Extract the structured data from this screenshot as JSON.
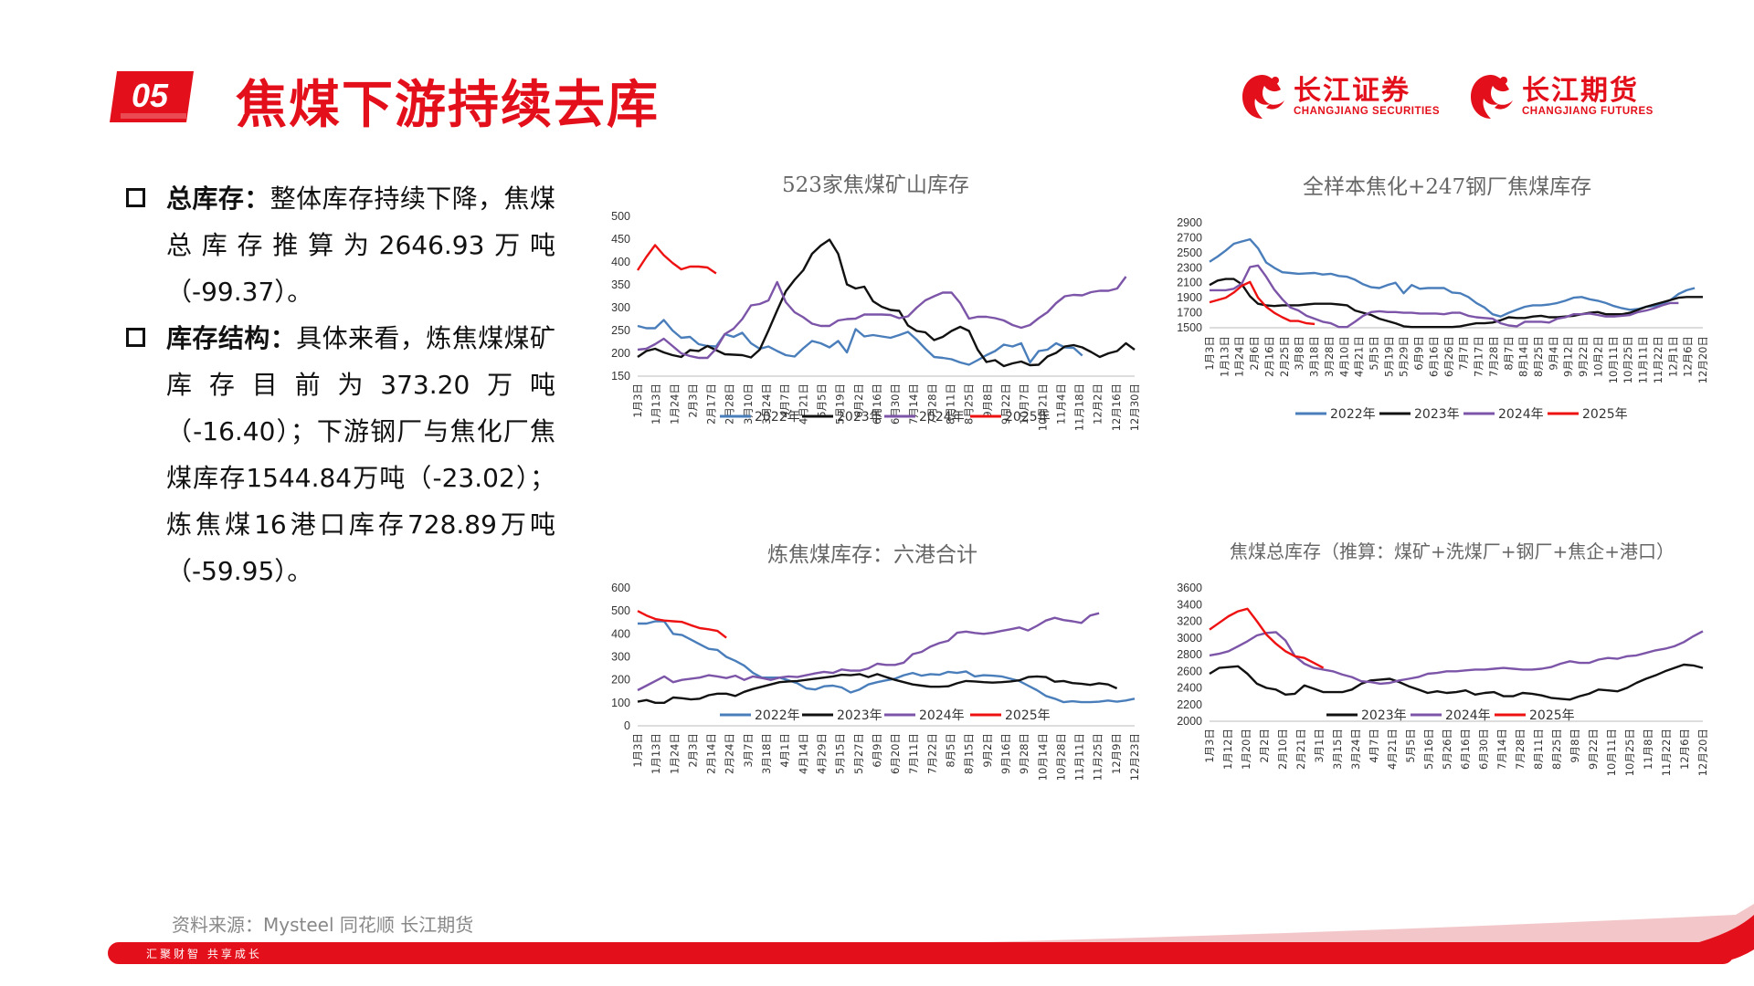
{
  "header": {
    "section_number": "05",
    "title": "焦煤下游持续去库",
    "logos": [
      {
        "cn": "长江证券",
        "en": "CHANGJIANG SECURITIES"
      },
      {
        "cn": "长江期货",
        "en": "CHANGJIANG FUTURES"
      }
    ]
  },
  "bullets": [
    {
      "label": "总库存：",
      "text": "整体库存持续下降，焦煤总库存推算为2646.93万吨（-99.37）。"
    },
    {
      "label": "库存结构：",
      "text": "具体来看，炼焦煤煤矿库存目前为373.20万吨（-16.40）；下游钢厂与焦化厂焦煤库存1544.84万吨（-23.02）；炼焦煤16港口库存728.89万吨（-59.95）。"
    }
  ],
  "source": "资料来源：Mysteel  同花顺   长江期货",
  "footer_slogan": "汇聚财智      共享成长",
  "colors": {
    "brand_red": "#e30f1a",
    "y2022": "#4a7ebb",
    "y2023": "#111111",
    "y2024": "#7c55a8",
    "y2025": "#ee1111"
  },
  "chart_data": [
    {
      "type": "line",
      "title": "523家焦煤矿山库存",
      "ylim": [
        150,
        500
      ],
      "yticks": [
        150,
        200,
        250,
        300,
        350,
        400,
        450,
        500
      ],
      "x_ticks": [
        "1月3日",
        "1月13日",
        "1月24日",
        "2月3日",
        "2月17日",
        "2月28日",
        "3月10日",
        "3月24日",
        "4月7日",
        "4月21日",
        "5月5日",
        "5月19日",
        "6月2日",
        "6月16日",
        "6月30日",
        "7月14日",
        "7月28日",
        "8月11日",
        "8月25日",
        "9月8日",
        "9月22日",
        "10月7日",
        "10月21日",
        "11月4日",
        "11月18日",
        "12月2日",
        "12月16日",
        "12月30日"
      ],
      "series": [
        {
          "name": "2022年",
          "color": "#4a7ebb",
          "values": [
            260,
            255,
            255,
            273,
            250,
            234,
            236,
            220,
            216,
            215,
            242,
            236,
            245,
            222,
            210,
            215,
            205,
            196,
            193,
            211,
            227,
            222,
            213,
            227,
            202,
            253,
            237,
            240,
            237,
            234,
            240,
            247,
            230,
            210,
            192,
            190,
            187,
            180,
            175,
            185,
            196,
            205,
            219,
            215,
            222,
            180,
            205,
            208,
            222,
            213,
            212,
            195
          ]
        },
        {
          "name": "2023年",
          "color": "#111111",
          "values": [
            192,
            205,
            210,
            202,
            196,
            192,
            207,
            205,
            216,
            207,
            198,
            197,
            196,
            191,
            208,
            250,
            294,
            336,
            361,
            382,
            418,
            436,
            449,
            418,
            351,
            342,
            346,
            314,
            302,
            295,
            293,
            261,
            249,
            246,
            229,
            236,
            249,
            258,
            249,
            208,
            181,
            185,
            172,
            178,
            182,
            174,
            175,
            193,
            201,
            215,
            218,
            213,
            203,
            192,
            200,
            205,
            222,
            208
          ]
        },
        {
          "name": "2024年",
          "color": "#7c55a8",
          "values": [
            208,
            210,
            220,
            232,
            216,
            200,
            194,
            190,
            190,
            210,
            242,
            254,
            275,
            305,
            308,
            316,
            356,
            312,
            290,
            279,
            265,
            260,
            260,
            272,
            275,
            276,
            285,
            285,
            285,
            284,
            277,
            281,
            300,
            316,
            325,
            333,
            333,
            310,
            276,
            280,
            280,
            277,
            272,
            262,
            256,
            262,
            277,
            290,
            310,
            325,
            328,
            327,
            334,
            337,
            337,
            342,
            368
          ]
        },
        {
          "name": "2025年",
          "color": "#ee1111",
          "values": [
            382,
            411,
            437,
            415,
            398,
            384,
            390,
            390,
            388,
            375
          ]
        }
      ]
    },
    {
      "type": "line",
      "title": "全样本焦化+247钢厂焦煤库存",
      "ylim": [
        1500,
        2900
      ],
      "yticks": [
        1500,
        1700,
        1900,
        2100,
        2300,
        2500,
        2700,
        2900
      ],
      "x_ticks": [
        "1月3日",
        "1月13日",
        "1月24日",
        "2月6日",
        "2月16日",
        "2月25日",
        "3月8日",
        "3月18日",
        "3月28日",
        "4月10日",
        "4月21日",
        "5月5日",
        "5月19日",
        "5月29日",
        "6月9日",
        "6月16日",
        "6月26日",
        "7月7日",
        "7月17日",
        "7月28日",
        "8月7日",
        "8月14日",
        "8月25日",
        "9月4日",
        "9月12日",
        "9月22日",
        "10月2日",
        "10月11日",
        "10月25日",
        "11月11日",
        "11月22日",
        "12月1日",
        "12月6日",
        "12月20日"
      ],
      "series": [
        {
          "name": "2022年",
          "color": "#4a7ebb",
          "values": [
            2380,
            2450,
            2530,
            2620,
            2650,
            2680,
            2560,
            2370,
            2300,
            2240,
            2230,
            2220,
            2225,
            2230,
            2210,
            2220,
            2190,
            2180,
            2140,
            2080,
            2040,
            2030,
            2070,
            2100,
            1960,
            2070,
            2020,
            2030,
            2030,
            2030,
            1970,
            1960,
            1910,
            1830,
            1770,
            1680,
            1650,
            1700,
            1740,
            1780,
            1800,
            1800,
            1810,
            1830,
            1860,
            1900,
            1910,
            1880,
            1860,
            1830,
            1790,
            1760,
            1740,
            1750,
            1780,
            1790,
            1820,
            1870,
            1950,
            2000,
            2030
          ]
        },
        {
          "name": "2023年",
          "color": "#111111",
          "values": [
            2070,
            2130,
            2150,
            2150,
            2080,
            1920,
            1820,
            1800,
            1790,
            1800,
            1800,
            1800,
            1810,
            1820,
            1820,
            1820,
            1810,
            1800,
            1730,
            1700,
            1670,
            1620,
            1590,
            1560,
            1520,
            1510,
            1510,
            1510,
            1510,
            1510,
            1510,
            1520,
            1540,
            1560,
            1560,
            1570,
            1600,
            1640,
            1630,
            1630,
            1650,
            1660,
            1640,
            1640,
            1650,
            1660,
            1680,
            1700,
            1710,
            1680,
            1680,
            1680,
            1700,
            1740,
            1780,
            1810,
            1840,
            1870,
            1900,
            1910,
            1910,
            1910
          ]
        },
        {
          "name": "2024年",
          "color": "#7c55a8",
          "values": [
            2000,
            2000,
            2000,
            2020,
            2090,
            2310,
            2330,
            2180,
            2010,
            1880,
            1770,
            1730,
            1660,
            1620,
            1580,
            1560,
            1510,
            1510,
            1580,
            1660,
            1710,
            1720,
            1710,
            1710,
            1700,
            1700,
            1690,
            1690,
            1690,
            1680,
            1700,
            1700,
            1660,
            1640,
            1630,
            1620,
            1560,
            1530,
            1520,
            1580,
            1580,
            1580,
            1570,
            1620,
            1640,
            1680,
            1680,
            1690,
            1670,
            1650,
            1650,
            1660,
            1670,
            1710,
            1730,
            1760,
            1800,
            1830,
            1830
          ]
        },
        {
          "name": "2025年",
          "color": "#ee1111",
          "values": [
            1840,
            1870,
            1900,
            1970,
            2060,
            2110,
            1900,
            1780,
            1700,
            1640,
            1590,
            1590,
            1560,
            1550
          ]
        }
      ]
    },
    {
      "type": "line",
      "title": "炼焦煤库存：六港合计",
      "ylim": [
        0,
        600
      ],
      "yticks": [
        0,
        100,
        200,
        300,
        400,
        500,
        600
      ],
      "x_ticks": [
        "1月3日",
        "1月13日",
        "1月24日",
        "2月3日",
        "2月14日",
        "2月24日",
        "3月7日",
        "3月18日",
        "4月1日",
        "4月14日",
        "4月29日",
        "5月15日",
        "5月27日",
        "6月9日",
        "6月20日",
        "7月11日",
        "7月22日",
        "8月5日",
        "8月15日",
        "9月2日",
        "9月16日",
        "9月28日",
        "10月14日",
        "10月28日",
        "11月11日",
        "11月25日",
        "12月9日",
        "12月23日"
      ],
      "series": [
        {
          "name": "2022年",
          "color": "#4a7ebb",
          "values": [
            445,
            445,
            455,
            455,
            400,
            395,
            375,
            355,
            335,
            330,
            300,
            283,
            262,
            230,
            210,
            210,
            210,
            198,
            185,
            163,
            158,
            172,
            175,
            167,
            145,
            158,
            180,
            190,
            198,
            205,
            220,
            230,
            218,
            225,
            222,
            235,
            230,
            237,
            215,
            220,
            218,
            215,
            205,
            195,
            175,
            155,
            130,
            118,
            103,
            107,
            103,
            103,
            105,
            110,
            105,
            110,
            118
          ]
        },
        {
          "name": "2023年",
          "color": "#111111",
          "values": [
            105,
            112,
            100,
            100,
            123,
            120,
            115,
            118,
            133,
            140,
            140,
            130,
            148,
            160,
            170,
            180,
            190,
            193,
            195,
            200,
            205,
            210,
            215,
            222,
            220,
            225,
            212,
            225,
            212,
            200,
            190,
            180,
            175,
            170,
            170,
            172,
            185,
            195,
            193,
            190,
            188,
            190,
            193,
            198,
            212,
            215,
            212,
            192,
            195,
            186,
            183,
            178,
            185,
            180,
            163
          ]
        },
        {
          "name": "2024年",
          "color": "#7c55a8",
          "values": [
            155,
            175,
            195,
            215,
            190,
            200,
            205,
            210,
            220,
            215,
            208,
            218,
            200,
            215,
            208,
            200,
            210,
            215,
            212,
            220,
            228,
            235,
            230,
            245,
            240,
            240,
            250,
            270,
            265,
            265,
            275,
            312,
            322,
            345,
            360,
            370,
            405,
            410,
            404,
            400,
            405,
            413,
            420,
            428,
            415,
            435,
            458,
            470,
            460,
            455,
            448,
            480,
            490
          ]
        },
        {
          "name": "2025年",
          "color": "#ee1111",
          "values": [
            500,
            480,
            465,
            458,
            455,
            452,
            438,
            425,
            420,
            413,
            383
          ]
        }
      ]
    },
    {
      "type": "line",
      "title": "焦煤总库存（推算：煤矿+洗煤厂+钢厂+焦企+港口）",
      "ylim": [
        2000,
        3600
      ],
      "yticks": [
        2000,
        2200,
        2400,
        2600,
        2800,
        3000,
        3200,
        3400,
        3600
      ],
      "x_ticks": [
        "1月3日",
        "1月12日",
        "1月20日",
        "2月2日",
        "2月10日",
        "2月21日",
        "3月1日",
        "3月15日",
        "3月24日",
        "4月7日",
        "4月21日",
        "5月5日",
        "5月16日",
        "5月26日",
        "6月16日",
        "6月30日",
        "7月14日",
        "7月28日",
        "8月11日",
        "8月25日",
        "9月8日",
        "9月22日",
        "10月11日",
        "10月25日",
        "11月8日",
        "11月22日",
        "12月6日",
        "12月20日"
      ],
      "series": [
        {
          "name": "2023年",
          "color": "#111111",
          "values": [
            2570,
            2640,
            2650,
            2660,
            2570,
            2450,
            2400,
            2380,
            2320,
            2330,
            2430,
            2390,
            2350,
            2350,
            2350,
            2380,
            2450,
            2490,
            2500,
            2510,
            2470,
            2420,
            2380,
            2340,
            2360,
            2340,
            2350,
            2370,
            2320,
            2340,
            2350,
            2300,
            2300,
            2340,
            2330,
            2310,
            2280,
            2270,
            2260,
            2300,
            2330,
            2380,
            2370,
            2360,
            2400,
            2460,
            2510,
            2550,
            2600,
            2640,
            2680,
            2670,
            2640
          ]
        },
        {
          "name": "2024年",
          "color": "#7c55a8",
          "values": [
            2790,
            2810,
            2840,
            2900,
            2960,
            3030,
            3060,
            3070,
            2970,
            2780,
            2690,
            2640,
            2620,
            2600,
            2560,
            2530,
            2480,
            2470,
            2450,
            2460,
            2490,
            2510,
            2530,
            2570,
            2580,
            2600,
            2600,
            2610,
            2620,
            2620,
            2630,
            2640,
            2630,
            2620,
            2620,
            2630,
            2650,
            2690,
            2720,
            2700,
            2700,
            2740,
            2760,
            2750,
            2780,
            2790,
            2820,
            2850,
            2870,
            2900,
            2950,
            3020,
            3080
          ]
        },
        {
          "name": "2025年",
          "color": "#ee1111",
          "values": [
            3100,
            3180,
            3260,
            3320,
            3350,
            3200,
            3040,
            2930,
            2840,
            2780,
            2760,
            2700,
            2640
          ]
        }
      ]
    }
  ]
}
